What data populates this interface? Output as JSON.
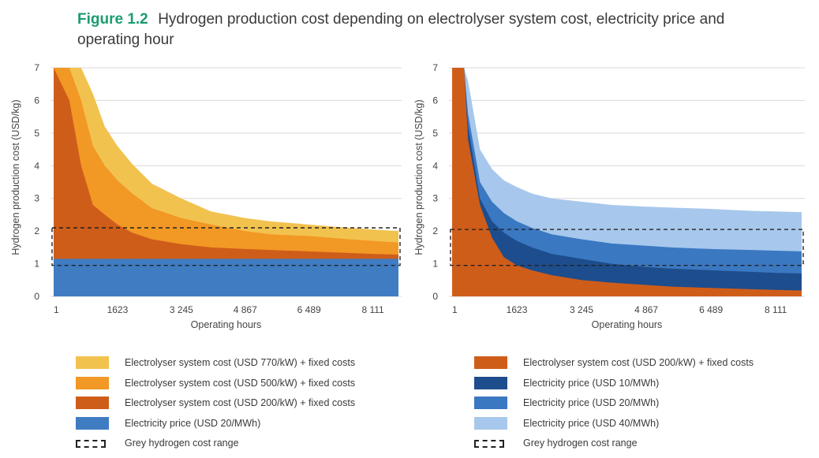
{
  "figure": {
    "label": "Figure 1.2",
    "title": "Hydrogen production cost depending on electrolyser system cost, electricity price and operating hour"
  },
  "colors": {
    "cost770": "#f2c24f",
    "cost500": "#f29824",
    "cost200": "#cf5d1a",
    "elec20_left": "#3f7cc2",
    "elec10": "#1d4d8c",
    "elec20": "#3b78c2",
    "elec40": "#a7c8ec",
    "grid": "#d8d8d8",
    "dash": "#222222"
  },
  "chart_data": [
    {
      "type": "area",
      "ylabel": "Hydrogen production cost (USD/kg)",
      "xlabel": "Operating hours",
      "xlim": [
        1,
        8760
      ],
      "ylim": [
        0,
        7
      ],
      "xticks": [
        1,
        1623,
        3245,
        4867,
        6489,
        8111
      ],
      "xtick_labels": [
        "1",
        "1623",
        "3 245",
        "4 867",
        "6 489",
        "8 111"
      ],
      "yticks": [
        0,
        1,
        2,
        3,
        4,
        5,
        6,
        7
      ],
      "grey_range": [
        0.95,
        2.1
      ],
      "x": [
        1,
        400,
        700,
        1000,
        1300,
        1623,
        2000,
        2500,
        3245,
        4000,
        4867,
        5500,
        6489,
        7500,
        8111,
        8760
      ],
      "series": [
        {
          "name": "Electrolyser system cost (USD 770/kW) + fixed costs",
          "color_key": "cost770",
          "values": [
            7,
            7,
            7,
            6.2,
            5.2,
            4.6,
            4.05,
            3.45,
            3.0,
            2.6,
            2.4,
            2.3,
            2.2,
            2.1,
            2.05,
            2.0
          ]
        },
        {
          "name": "Electrolyser system cost (USD 500/kW) + fixed costs",
          "color_key": "cost500",
          "values": [
            7,
            7,
            6.0,
            4.6,
            4.0,
            3.55,
            3.15,
            2.7,
            2.4,
            2.2,
            2.0,
            1.9,
            1.85,
            1.75,
            1.7,
            1.65
          ]
        },
        {
          "name": "Electrolyser system cost (USD 200/kW) + fixed costs",
          "color_key": "cost200",
          "values": [
            7,
            6.0,
            4.0,
            2.8,
            2.5,
            2.2,
            1.95,
            1.75,
            1.6,
            1.5,
            1.45,
            1.42,
            1.38,
            1.33,
            1.3,
            1.28
          ]
        },
        {
          "name": "Electricity price (USD 20/MWh)",
          "color_key": "elec20_left",
          "values": [
            1.15,
            1.15,
            1.15,
            1.15,
            1.15,
            1.15,
            1.15,
            1.15,
            1.15,
            1.15,
            1.15,
            1.15,
            1.15,
            1.15,
            1.15,
            1.15
          ]
        }
      ]
    },
    {
      "type": "area",
      "ylabel": "Hydrogen production cost (USD/kg)",
      "xlabel": "Operating hours",
      "xlim": [
        1,
        8760
      ],
      "ylim": [
        0,
        7
      ],
      "xticks": [
        1,
        1623,
        3245,
        4867,
        6489,
        8111
      ],
      "xtick_labels": [
        "1",
        "1623",
        "3 245",
        "4 867",
        "6 489",
        "8 111"
      ],
      "yticks": [
        0,
        1,
        2,
        3,
        4,
        5,
        6,
        7
      ],
      "grey_range": [
        0.95,
        2.05
      ],
      "x": [
        1,
        300,
        400,
        700,
        1000,
        1300,
        1623,
        2000,
        2500,
        3245,
        4000,
        4867,
        5500,
        6489,
        7500,
        8111,
        8760
      ],
      "series": [
        {
          "name": "Electricity price (USD 40/MWh)",
          "color_key": "elec40",
          "values": [
            7,
            7,
            6.6,
            4.5,
            3.9,
            3.55,
            3.35,
            3.15,
            3.0,
            2.9,
            2.8,
            2.75,
            2.72,
            2.68,
            2.62,
            2.6,
            2.58
          ]
        },
        {
          "name": "Electricity price (USD 20/MWh)",
          "color_key": "elec20",
          "values": [
            7,
            7,
            5.6,
            3.5,
            2.9,
            2.55,
            2.3,
            2.1,
            1.9,
            1.75,
            1.62,
            1.55,
            1.5,
            1.45,
            1.42,
            1.4,
            1.38
          ]
        },
        {
          "name": "Electricity price (USD 10/MWh)",
          "color_key": "elec10",
          "values": [
            7,
            7,
            5.2,
            3.0,
            2.3,
            1.95,
            1.7,
            1.5,
            1.3,
            1.15,
            1.0,
            0.9,
            0.85,
            0.8,
            0.75,
            0.72,
            0.7
          ]
        },
        {
          "name": "Electrolyser system cost (USD 200/kW) + fixed costs",
          "color_key": "cost200",
          "values": [
            7,
            7,
            4.8,
            2.8,
            1.8,
            1.2,
            0.95,
            0.8,
            0.65,
            0.5,
            0.42,
            0.35,
            0.3,
            0.26,
            0.22,
            0.2,
            0.18
          ]
        }
      ]
    }
  ],
  "legend_left": [
    {
      "label": "Electrolyser system cost (USD 770/kW) + fixed costs",
      "color_key": "cost770",
      "style": "fill"
    },
    {
      "label": "Electrolyser system cost (USD 500/kW) + fixed costs",
      "color_key": "cost500",
      "style": "fill"
    },
    {
      "label": "Electrolyser system cost (USD 200/kW) + fixed costs",
      "color_key": "cost200",
      "style": "fill"
    },
    {
      "label": "Electricity price (USD 20/MWh)",
      "color_key": "elec20_left",
      "style": "fill"
    },
    {
      "label": "Grey hydrogen cost range",
      "color_key": "dash",
      "style": "dashed"
    }
  ],
  "legend_right": [
    {
      "label": "Electrolyser system cost (USD 200/kW) + fixed costs",
      "color_key": "cost200",
      "style": "fill"
    },
    {
      "label": "Electricity price (USD 10/MWh)",
      "color_key": "elec10",
      "style": "fill"
    },
    {
      "label": "Electricity price (USD 20/MWh)",
      "color_key": "elec20",
      "style": "fill"
    },
    {
      "label": "Electricity price (USD 40/MWh)",
      "color_key": "elec40",
      "style": "fill"
    },
    {
      "label": "Grey hydrogen cost range",
      "color_key": "dash",
      "style": "dashed"
    }
  ]
}
